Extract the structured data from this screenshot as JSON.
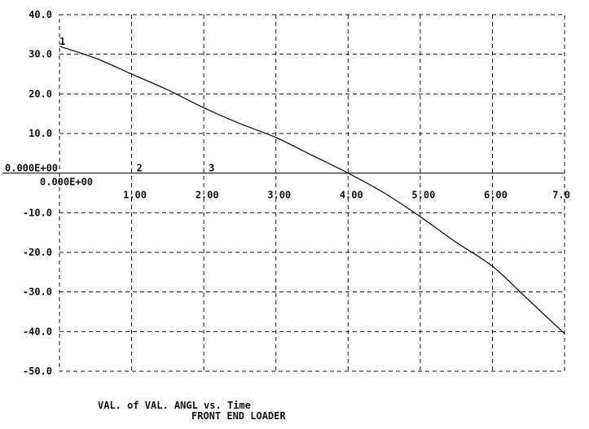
{
  "chart_data": {
    "type": "line",
    "title": "VAL. of VAL. ANGL vs. Time",
    "subtitle": "FRONT END LOADER",
    "xlim": [
      0,
      7
    ],
    "ylim": [
      -50,
      40
    ],
    "grid": true,
    "x_ticks": [
      {
        "value": 0,
        "label": "0.000E+00"
      },
      {
        "value": 1,
        "label": "1.00"
      },
      {
        "value": 2,
        "label": "2.00"
      },
      {
        "value": 3,
        "label": "3.00"
      },
      {
        "value": 4,
        "label": "4.00"
      },
      {
        "value": 5,
        "label": "5.00"
      },
      {
        "value": 6,
        "label": "6.00"
      },
      {
        "value": 7,
        "label": "7.0"
      }
    ],
    "y_ticks": [
      {
        "value": 40,
        "label": "40.0"
      },
      {
        "value": 30,
        "label": "30.0"
      },
      {
        "value": 20,
        "label": "20.0"
      },
      {
        "value": 10,
        "label": "10.0"
      },
      {
        "value": 0,
        "label": "0.000E+00"
      },
      {
        "value": -10,
        "label": "-10.0"
      },
      {
        "value": -20,
        "label": "-20.0"
      },
      {
        "value": -30,
        "label": "-30.0"
      },
      {
        "value": -40,
        "label": "-40.0"
      },
      {
        "value": -50,
        "label": "-50.0"
      }
    ],
    "point_markers": [
      {
        "label": "1",
        "x": 0.0,
        "y": 32.0
      },
      {
        "label": "2",
        "x": 1.0,
        "y": 0.0
      },
      {
        "label": "3",
        "x": 2.0,
        "y": 0.0
      }
    ],
    "series": [
      {
        "x": [
          0.0,
          0.5,
          1.0,
          1.5,
          2.0,
          2.5,
          3.0,
          3.5,
          4.0,
          4.5,
          5.0,
          5.5,
          6.0,
          6.5,
          7.0
        ],
        "values": [
          32.0,
          29.0,
          25.0,
          21.0,
          16.5,
          12.5,
          9.0,
          4.5,
          0.0,
          -5.0,
          -11.0,
          -17.5,
          -23.5,
          -32.0,
          -40.5
        ]
      }
    ]
  }
}
